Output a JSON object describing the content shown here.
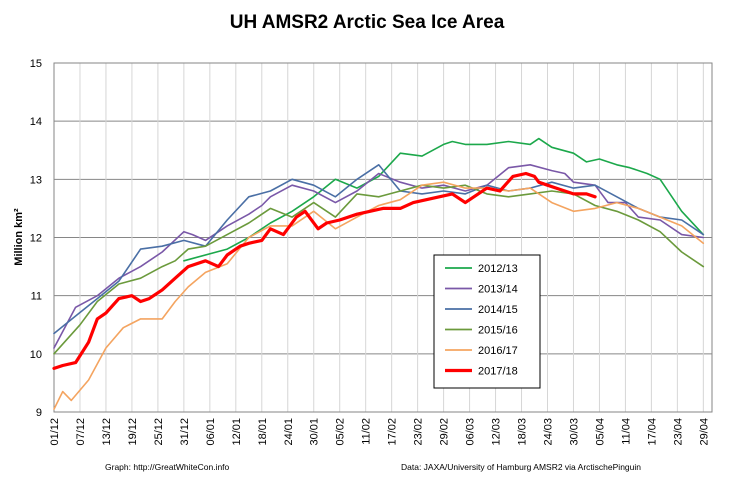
{
  "chart_data": {
    "type": "line",
    "title": "UH AMSR2 Arctic Sea Ice Area",
    "ylabel": "Million km²",
    "xlabel": "",
    "ylim": [
      9,
      15
    ],
    "yticks": [
      "9",
      "10",
      "11",
      "12",
      "13",
      "14",
      "15"
    ],
    "grid": true,
    "legend_placement": "center",
    "x_tick_labels": [
      "01/12",
      "07/12",
      "13/12",
      "19/12",
      "25/12",
      "31/12",
      "06/01",
      "12/01",
      "18/01",
      "24/01",
      "30/01",
      "05/02",
      "11/02",
      "17/02",
      "23/02",
      "29/02",
      "06/03",
      "12/03",
      "18/03",
      "24/03",
      "30/03",
      "05/04",
      "11/04",
      "17/04",
      "23/04",
      "29/04"
    ],
    "x_unit": "days (01/12 = day 0)",
    "series": [
      {
        "name": "2012/13",
        "color": "#1ca84b",
        "x": [
          30,
          40,
          45,
          50,
          55,
          60,
          65,
          70,
          75,
          80,
          85,
          90,
          92,
          95,
          100,
          105,
          110,
          112,
          115,
          120,
          123,
          126,
          130,
          133,
          137,
          140,
          145,
          150
        ],
        "values": [
          11.6,
          11.8,
          12.0,
          12.25,
          12.45,
          12.7,
          13.0,
          12.85,
          13.05,
          13.45,
          13.4,
          13.6,
          13.65,
          13.6,
          13.6,
          13.65,
          13.6,
          13.7,
          13.55,
          13.45,
          13.3,
          13.35,
          13.25,
          13.2,
          13.1,
          13.0,
          12.45,
          12.05
        ]
      },
      {
        "name": "2013/14",
        "color": "#7a58a8",
        "x": [
          0,
          5,
          10,
          15,
          20,
          25,
          30,
          32,
          35,
          40,
          45,
          48,
          50,
          55,
          60,
          65,
          70,
          75,
          80,
          85,
          90,
          95,
          100,
          105,
          110,
          115,
          118,
          120,
          125,
          128,
          132,
          135,
          140,
          145,
          150
        ],
        "values": [
          10.1,
          10.8,
          11.0,
          11.3,
          11.5,
          11.75,
          12.1,
          12.05,
          11.95,
          12.2,
          12.4,
          12.55,
          12.7,
          12.9,
          12.8,
          12.6,
          12.8,
          13.1,
          12.95,
          12.85,
          12.9,
          12.8,
          12.9,
          13.2,
          13.25,
          13.15,
          13.1,
          12.95,
          12.9,
          12.6,
          12.6,
          12.35,
          12.3,
          12.05,
          12.0
        ]
      },
      {
        "name": "2014/15",
        "color": "#4a6fa5",
        "x": [
          0,
          5,
          10,
          15,
          20,
          25,
          30,
          35,
          40,
          45,
          50,
          55,
          60,
          65,
          70,
          75,
          80,
          85,
          90,
          95,
          100,
          105,
          110,
          115,
          120,
          125,
          130,
          135,
          140,
          145,
          150
        ],
        "values": [
          10.35,
          10.65,
          10.95,
          11.25,
          11.8,
          11.85,
          11.95,
          11.85,
          12.3,
          12.7,
          12.8,
          13.0,
          12.9,
          12.7,
          13.0,
          13.25,
          12.8,
          12.75,
          12.8,
          12.75,
          12.9,
          12.8,
          12.85,
          12.95,
          12.85,
          12.9,
          12.7,
          12.5,
          12.35,
          12.3,
          12.05
        ]
      },
      {
        "name": "2015/16",
        "color": "#6b9a3c",
        "x": [
          0,
          3,
          6,
          10,
          15,
          20,
          25,
          28,
          31,
          35,
          40,
          45,
          50,
          55,
          60,
          65,
          70,
          75,
          80,
          85,
          90,
          95,
          100,
          105,
          110,
          115,
          120,
          125,
          130,
          135,
          140,
          145,
          150
        ],
        "values": [
          10.0,
          10.25,
          10.5,
          10.9,
          11.2,
          11.3,
          11.5,
          11.6,
          11.8,
          11.85,
          12.05,
          12.25,
          12.5,
          12.35,
          12.6,
          12.35,
          12.75,
          12.7,
          12.8,
          12.9,
          12.85,
          12.9,
          12.75,
          12.7,
          12.75,
          12.8,
          12.75,
          12.55,
          12.45,
          12.3,
          12.1,
          11.75,
          11.5
        ]
      },
      {
        "name": "2016/17",
        "color": "#f4a460",
        "x": [
          0,
          2,
          4,
          8,
          12,
          16,
          20,
          25,
          28,
          31,
          35,
          40,
          45,
          50,
          55,
          60,
          65,
          70,
          75,
          80,
          85,
          90,
          95,
          100,
          105,
          110,
          115,
          120,
          125,
          130,
          135,
          140,
          145,
          150
        ],
        "values": [
          9.05,
          9.35,
          9.2,
          9.55,
          10.1,
          10.45,
          10.6,
          10.6,
          10.9,
          11.15,
          11.4,
          11.55,
          12.0,
          12.2,
          12.2,
          12.45,
          12.15,
          12.35,
          12.55,
          12.65,
          12.9,
          12.95,
          12.85,
          12.85,
          12.8,
          12.85,
          12.6,
          12.45,
          12.5,
          12.6,
          12.5,
          12.35,
          12.2,
          11.9
        ]
      },
      {
        "name": "2017/18",
        "color": "#ff0000",
        "x": [
          0,
          2,
          5,
          8,
          10,
          12,
          15,
          18,
          20,
          22,
          25,
          28,
          31,
          35,
          38,
          40,
          43,
          45,
          48,
          50,
          53,
          56,
          58,
          61,
          63,
          66,
          70,
          73,
          76,
          80,
          83,
          86,
          89,
          92,
          95,
          98,
          100,
          103,
          106,
          109,
          111,
          112,
          114,
          116,
          118,
          120,
          123,
          125
        ],
        "values": [
          9.75,
          9.8,
          9.85,
          10.2,
          10.6,
          10.7,
          10.95,
          11.0,
          10.9,
          10.95,
          11.1,
          11.3,
          11.5,
          11.6,
          11.5,
          11.7,
          11.85,
          11.9,
          11.95,
          12.15,
          12.05,
          12.35,
          12.45,
          12.15,
          12.25,
          12.3,
          12.4,
          12.45,
          12.5,
          12.5,
          12.6,
          12.65,
          12.7,
          12.75,
          12.6,
          12.75,
          12.85,
          12.8,
          13.05,
          13.1,
          13.05,
          12.95,
          12.9,
          12.85,
          12.8,
          12.75,
          12.75,
          12.7
        ]
      }
    ]
  },
  "footer": {
    "left": "Graph: http://GreatWhiteCon.info",
    "right": "Data: JAXA/University of Hamburg AMSR2 via  ArctischePinguin"
  }
}
